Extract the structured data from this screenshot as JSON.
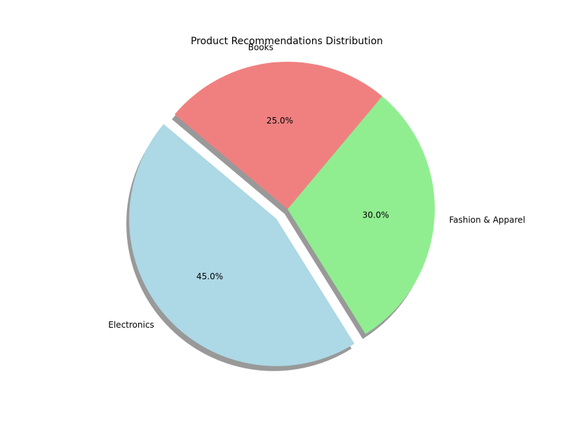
{
  "chart_data": {
    "type": "pie",
    "title": "Product Recommendations Distribution",
    "slices": [
      {
        "label": "Electronics",
        "value": 45.0,
        "pct_label": "45.0%",
        "color": "#add8e6",
        "exploded": true
      },
      {
        "label": "Fashion & Apparel",
        "value": 30.0,
        "pct_label": "30.0%",
        "color": "#90ee90",
        "exploded": false
      },
      {
        "label": "Books",
        "value": 25.0,
        "pct_label": "25.0%",
        "color": "#f08080",
        "exploded": false
      }
    ],
    "start_angle_deg": 140,
    "direction": "counterclockwise",
    "shadow": true,
    "legend": "none"
  }
}
